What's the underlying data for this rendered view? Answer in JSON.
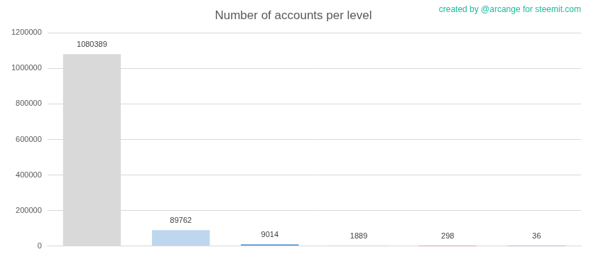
{
  "chart_data": {
    "type": "bar",
    "title": "Number of accounts per level",
    "annotation": "created by @arcange for steemit.com",
    "categories": [
      null,
      null,
      null,
      null,
      null,
      null
    ],
    "values": [
      1080389,
      89762,
      9014,
      1889,
      298,
      36
    ],
    "colors": [
      "#d9d9d9",
      "#bdd7ee",
      "#5b9bd5",
      "#70ad47",
      "#c00000",
      "#7030a0"
    ],
    "ylim": [
      0,
      1200000
    ],
    "yticks": [
      0,
      200000,
      400000,
      600000,
      800000,
      1000000,
      1200000
    ],
    "grid": true,
    "data_labels": true
  }
}
